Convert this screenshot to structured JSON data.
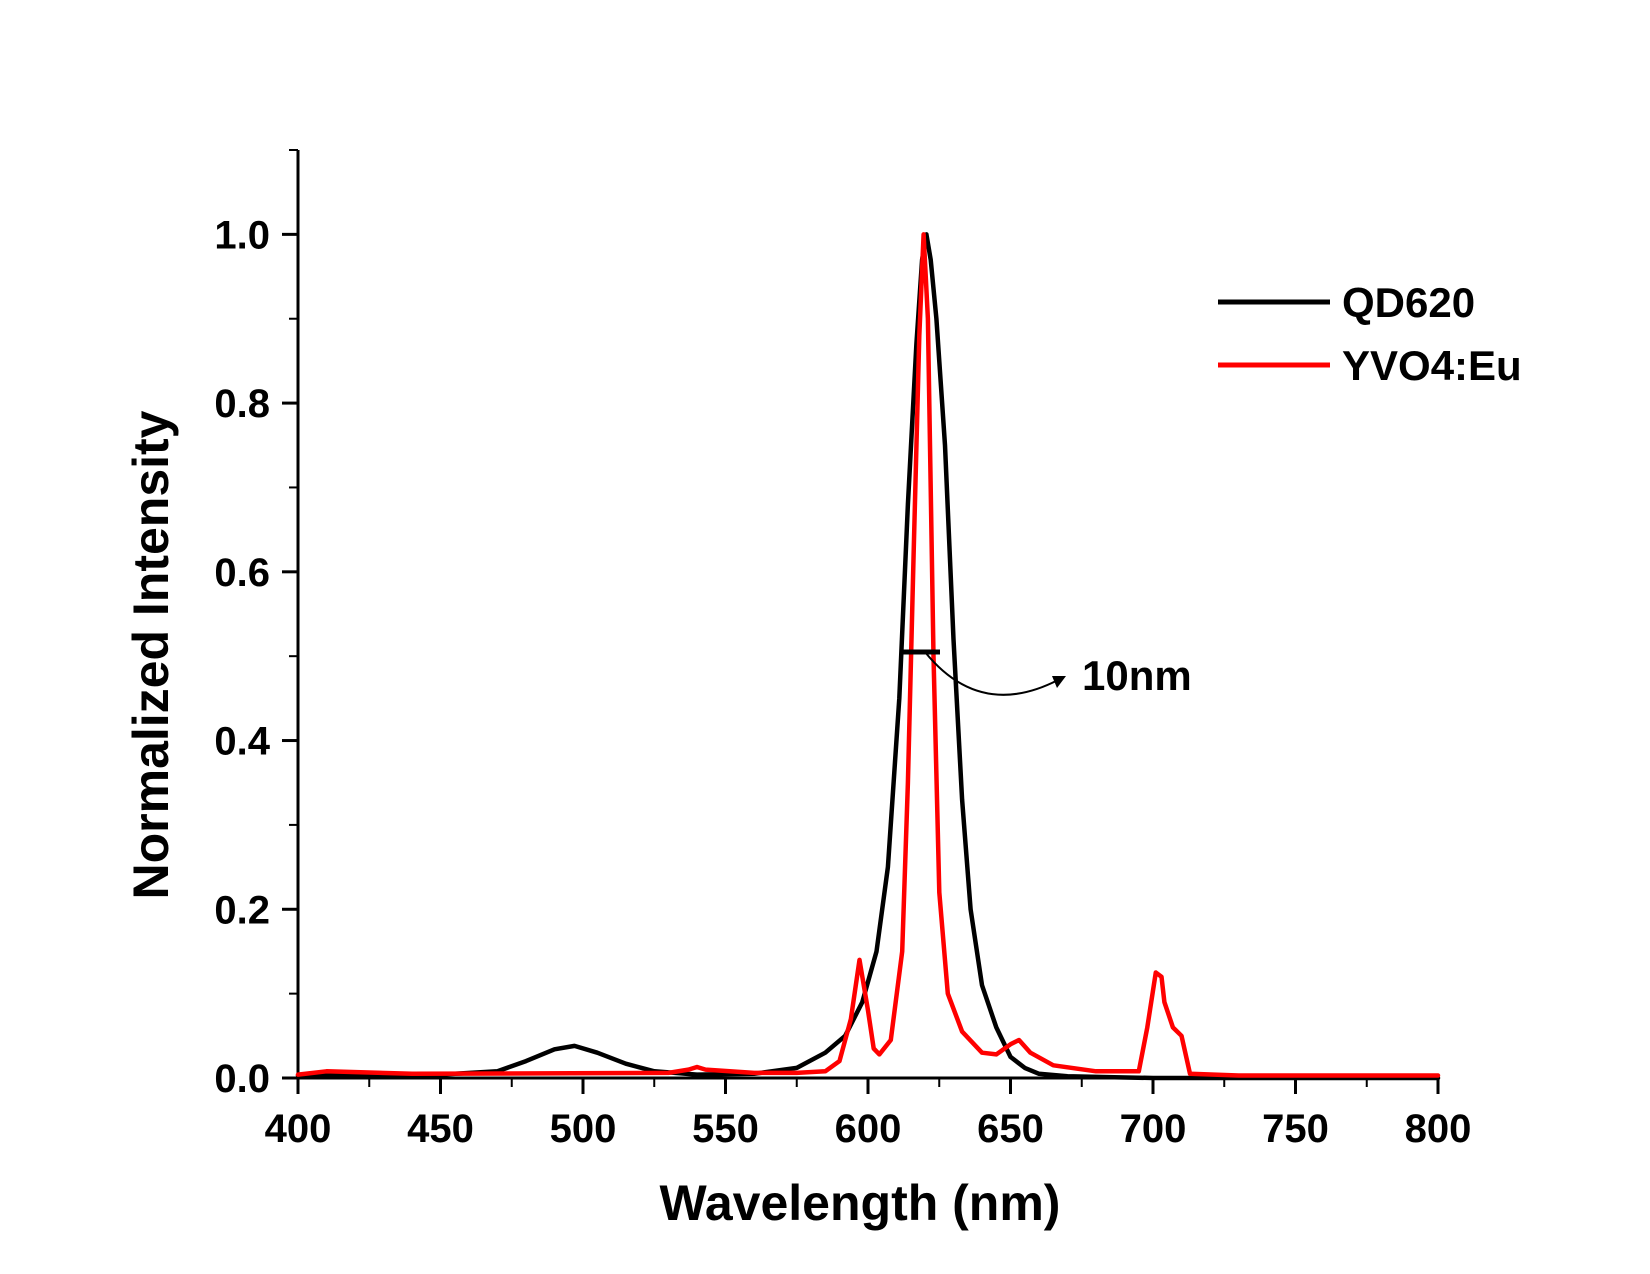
{
  "chart_data": {
    "type": "line",
    "xlabel": "Wavelength (nm)",
    "ylabel": "Normalized Intensity",
    "xlim": [
      400,
      800
    ],
    "ylim": [
      0,
      1.1
    ],
    "x_ticks": [
      400,
      450,
      500,
      550,
      600,
      650,
      700,
      750,
      800
    ],
    "x_tick_labels": [
      "400",
      "450",
      "500",
      "550",
      "600",
      "650",
      "700",
      "750",
      "800"
    ],
    "y_ticks": [
      0.0,
      0.2,
      0.4,
      0.6,
      0.8,
      1.0
    ],
    "y_tick_labels": [
      "0.0",
      "0.2",
      "0.4",
      "0.6",
      "0.8",
      "1.0"
    ],
    "grid": false,
    "legend_position": "top-right",
    "series": [
      {
        "name": "QD620",
        "color": "#000000",
        "x": [
          400,
          450,
          470,
          480,
          490,
          497,
          505,
          515,
          525,
          540,
          560,
          575,
          585,
          592,
          598,
          603,
          607,
          611,
          614,
          617,
          619,
          620.5,
          622,
          624,
          627,
          630,
          633,
          636,
          640,
          645,
          650,
          655,
          660,
          670,
          700,
          800
        ],
        "y": [
          0.003,
          0.004,
          0.008,
          0.02,
          0.034,
          0.038,
          0.03,
          0.017,
          0.008,
          0.004,
          0.005,
          0.012,
          0.03,
          0.05,
          0.09,
          0.15,
          0.25,
          0.45,
          0.68,
          0.87,
          0.97,
          1.0,
          0.97,
          0.9,
          0.75,
          0.52,
          0.33,
          0.2,
          0.11,
          0.06,
          0.025,
          0.012,
          0.005,
          0.002,
          0.0,
          0.0
        ]
      },
      {
        "name": "YVO4:Eu",
        "color": "#ff0000",
        "x": [
          400,
          410,
          440,
          530,
          537,
          540,
          543,
          560,
          575,
          585,
          590,
          594,
          597,
          600,
          602,
          604,
          608,
          612,
          614,
          616,
          618,
          619.5,
          621,
          623,
          625,
          628,
          633,
          640,
          645,
          650,
          653,
          657,
          665,
          680,
          695,
          698,
          701,
          703,
          704,
          707,
          710,
          713,
          730,
          800
        ],
        "y": [
          0.004,
          0.008,
          0.005,
          0.006,
          0.01,
          0.013,
          0.01,
          0.006,
          0.006,
          0.008,
          0.02,
          0.07,
          0.14,
          0.08,
          0.035,
          0.028,
          0.045,
          0.15,
          0.35,
          0.62,
          0.88,
          1.0,
          0.9,
          0.5,
          0.22,
          0.1,
          0.055,
          0.03,
          0.028,
          0.04,
          0.045,
          0.03,
          0.015,
          0.008,
          0.008,
          0.06,
          0.125,
          0.12,
          0.09,
          0.06,
          0.05,
          0.005,
          0.003,
          0.003
        ]
      }
    ],
    "annotations": [
      {
        "text": "10nm",
        "x": 714,
        "y": 0.47
      }
    ]
  }
}
